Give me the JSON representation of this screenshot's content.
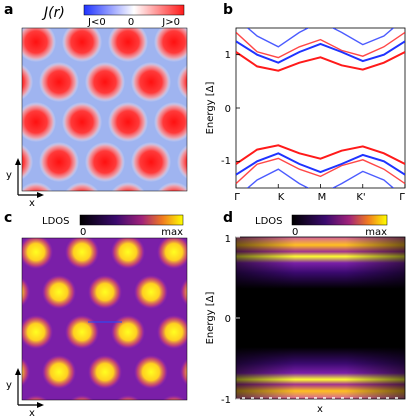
{
  "figure": {
    "panels": [
      {
        "letter": "a",
        "colorbar": {
          "title": "J(r)",
          "left_label": "J<0",
          "center_label": "0",
          "right_label": "J>0",
          "colors": [
            "#1f33ff",
            "#ffffff",
            "#ff1a1a"
          ]
        },
        "axes": {
          "x": "x",
          "y": "y"
        }
      },
      {
        "letter": "b",
        "ylabel": "Energy [Δ]",
        "yticks": [
          "1",
          "0",
          "-1"
        ],
        "xticks": [
          "Γ",
          "K",
          "M",
          "K'",
          "Γ"
        ]
      },
      {
        "letter": "c",
        "colorbar": {
          "title": "LDOS",
          "left_label": "0",
          "right_label": "max"
        },
        "axes": {
          "x": "x",
          "y": "y"
        }
      },
      {
        "letter": "d",
        "colorbar": {
          "title": "LDOS",
          "left_label": "0",
          "right_label": "max"
        },
        "ylabel": "Energy [Δ]",
        "yticks": [
          "1",
          "0",
          "-1"
        ],
        "xlabel": "x"
      }
    ],
    "colors": {
      "positive": "#ff1a1a",
      "negative": "#1f33ff",
      "ldos_low": "#000000",
      "ldos_mid": "#7a1fa8",
      "ldos_high": "#ffff00"
    }
  },
  "chart_data": [
    {
      "type": "heatmap",
      "title": "J(r)",
      "xlabel": "x",
      "ylabel": "y",
      "legend": [
        "J<0",
        "0",
        "J>0"
      ]
    },
    {
      "type": "line",
      "ylabel": "Energy [Δ]",
      "categories": [
        "Γ",
        "K",
        "M",
        "K'",
        "Γ"
      ],
      "ylim": [
        -1.5,
        1.5
      ],
      "yticks": [
        1,
        0,
        -1
      ],
      "series": [
        {
          "color": "#ff1a1a",
          "x": [
            0,
            0.5,
            1,
            1.5,
            2,
            2.5,
            3,
            3.5,
            4
          ],
          "y": [
            1.05,
            0.78,
            0.7,
            0.85,
            0.95,
            0.8,
            0.72,
            0.85,
            1.05
          ]
        },
        {
          "color": "#1f33ff",
          "x": [
            0,
            0.5,
            1,
            1.5,
            2,
            2.5,
            3,
            3.5,
            4
          ],
          "y": [
            1.25,
            1.0,
            0.85,
            1.05,
            1.2,
            1.05,
            0.88,
            1.0,
            1.25
          ]
        },
        {
          "color": "#ff1a1a",
          "x": [
            0,
            0.5,
            1,
            1.5,
            2,
            2.5,
            3,
            3.5,
            4
          ],
          "y": [
            -1.05,
            -0.78,
            -0.7,
            -0.85,
            -0.95,
            -0.8,
            -0.72,
            -0.85,
            -1.05
          ]
        },
        {
          "color": "#1f33ff",
          "x": [
            0,
            0.5,
            1,
            1.5,
            2,
            2.5,
            3,
            3.5,
            4
          ],
          "y": [
            -1.25,
            -1.0,
            -0.85,
            -1.05,
            -1.2,
            -1.05,
            -0.88,
            -1.0,
            -1.25
          ]
        }
      ]
    },
    {
      "type": "heatmap",
      "title": "LDOS",
      "xlabel": "x",
      "ylabel": "y",
      "legend": [
        "0",
        "max"
      ]
    },
    {
      "type": "heatmap",
      "title": "LDOS",
      "xlabel": "x",
      "ylabel": "Energy [Δ]",
      "yticks": [
        1,
        0,
        -1
      ],
      "ylim": [
        -1,
        1
      ],
      "rows": [
        {
          "energy": 0.9,
          "intensity": 0.95
        },
        {
          "energy": 0.6,
          "intensity": 0.9
        },
        {
          "energy": 0.4,
          "intensity": 0.4
        },
        {
          "energy": 0.0,
          "intensity": 0.0
        },
        {
          "energy": -0.4,
          "intensity": 0.4
        },
        {
          "energy": -0.6,
          "intensity": 0.9
        },
        {
          "energy": -0.9,
          "intensity": 0.95
        }
      ],
      "legend": [
        "0",
        "max"
      ]
    }
  ]
}
